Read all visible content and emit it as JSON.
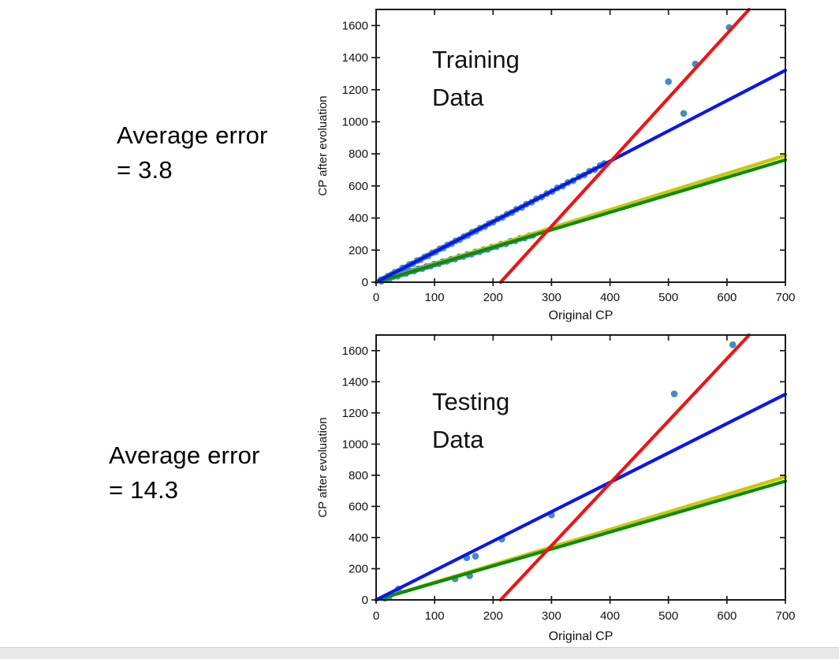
{
  "colors": {
    "scatter": "#2478b4",
    "blue_line": "#0a16ee",
    "green_line": "#0d8a0d",
    "yellow_line": "#c9c900",
    "red_line": "#ee1414",
    "axis": "#1a1a1a",
    "text": "#000000",
    "footer_bar": "#e8e8e8"
  },
  "left_annotations": [
    {
      "id": "training_error",
      "lines": [
        "Average error",
        "= 3.8"
      ]
    },
    {
      "id": "testing_error",
      "lines": [
        "Average error",
        "= 14.3"
      ]
    }
  ],
  "chart_data": [
    {
      "type": "scatter",
      "title_lines": [
        "Training",
        "Data"
      ],
      "xlabel": "Original CP",
      "ylabel": "CP after evoluation",
      "xlim": [
        0,
        700
      ],
      "ylim": [
        0,
        1700
      ],
      "xticks": [
        0,
        100,
        200,
        300,
        400,
        500,
        600,
        700
      ],
      "yticks": [
        0,
        200,
        400,
        600,
        800,
        1000,
        1200,
        1400,
        1600
      ],
      "grid": false,
      "legend": null,
      "lines": [
        {
          "name": "yellow-reference-line",
          "color_key": "yellow_line",
          "from": [
            0,
            0
          ],
          "to": [
            700,
            790
          ],
          "width": 4.5
        },
        {
          "name": "green-fit-line",
          "color_key": "green_line",
          "from": [
            0,
            0
          ],
          "to": [
            700,
            762
          ],
          "width": 4.2
        },
        {
          "name": "blue-fit-line",
          "color_key": "blue_line",
          "from": [
            0,
            0
          ],
          "to": [
            700,
            1320
          ],
          "width": 4.2
        },
        {
          "name": "red-steep-line",
          "color_key": "red_line",
          "from": [
            213,
            0
          ],
          "to": [
            638,
            1700
          ],
          "width": 4.2
        }
      ],
      "scatter_points": [
        [
          8,
          15
        ],
        [
          14,
          22
        ],
        [
          20,
          38
        ],
        [
          26,
          46
        ],
        [
          32,
          62
        ],
        [
          38,
          68
        ],
        [
          45,
          88
        ],
        [
          51,
          92
        ],
        [
          57,
          110
        ],
        [
          63,
          116
        ],
        [
          70,
          134
        ],
        [
          76,
          140
        ],
        [
          83,
          158
        ],
        [
          89,
          164
        ],
        [
          96,
          183
        ],
        [
          102,
          189
        ],
        [
          109,
          208
        ],
        [
          115,
          214
        ],
        [
          122,
          232
        ],
        [
          129,
          240
        ],
        [
          136,
          258
        ],
        [
          143,
          266
        ],
        [
          150,
          284
        ],
        [
          157,
          292
        ],
        [
          164,
          311
        ],
        [
          171,
          319
        ],
        [
          178,
          337
        ],
        [
          186,
          347
        ],
        [
          193,
          366
        ],
        [
          200,
          374
        ],
        [
          208,
          394
        ],
        [
          216,
          404
        ],
        [
          224,
          424
        ],
        [
          232,
          434
        ],
        [
          240,
          455
        ],
        [
          249,
          466
        ],
        [
          257,
          487
        ],
        [
          266,
          498
        ],
        [
          274,
          520
        ],
        [
          283,
          531
        ],
        [
          292,
          553
        ],
        [
          301,
          565
        ],
        [
          310,
          588
        ],
        [
          319,
          599
        ],
        [
          328,
          622
        ],
        [
          337,
          633
        ],
        [
          347,
          658
        ],
        [
          356,
          668
        ],
        [
          365,
          693
        ],
        [
          374,
          702
        ],
        [
          383,
          727
        ],
        [
          390,
          740
        ],
        [
          9,
          6
        ],
        [
          16,
          20
        ],
        [
          23,
          22
        ],
        [
          30,
          36
        ],
        [
          37,
          38
        ],
        [
          44,
          52
        ],
        [
          51,
          54
        ],
        [
          58,
          68
        ],
        [
          65,
          70
        ],
        [
          72,
          83
        ],
        [
          79,
          85
        ],
        [
          86,
          98
        ],
        [
          93,
          100
        ],
        [
          100,
          113
        ],
        [
          107,
          115
        ],
        [
          114,
          128
        ],
        [
          121,
          130
        ],
        [
          128,
          143
        ],
        [
          135,
          145
        ],
        [
          142,
          158
        ],
        [
          149,
          160
        ],
        [
          156,
          173
        ],
        [
          163,
          175
        ],
        [
          170,
          188
        ],
        [
          177,
          190
        ],
        [
          184,
          203
        ],
        [
          191,
          205
        ],
        [
          198,
          218
        ],
        [
          206,
          222
        ],
        [
          214,
          237
        ],
        [
          222,
          240
        ],
        [
          230,
          255
        ],
        [
          238,
          258
        ],
        [
          246,
          272
        ],
        [
          254,
          275
        ],
        [
          262,
          290
        ],
        [
          268,
          293
        ],
        [
          500,
          1250
        ],
        [
          526,
          1052
        ],
        [
          546,
          1360
        ],
        [
          604,
          1588
        ]
      ]
    },
    {
      "type": "scatter",
      "title_lines": [
        "Testing",
        "Data"
      ],
      "xlabel": "Original CP",
      "ylabel": "CP after evoluation",
      "xlim": [
        0,
        700
      ],
      "ylim": [
        0,
        1700
      ],
      "xticks": [
        0,
        100,
        200,
        300,
        400,
        500,
        600,
        700
      ],
      "yticks": [
        0,
        200,
        400,
        600,
        800,
        1000,
        1200,
        1400,
        1600
      ],
      "grid": false,
      "legend": null,
      "lines": [
        {
          "name": "yellow-reference-line",
          "color_key": "yellow_line",
          "from": [
            0,
            0
          ],
          "to": [
            700,
            790
          ],
          "width": 4.5
        },
        {
          "name": "green-fit-line",
          "color_key": "green_line",
          "from": [
            0,
            0
          ],
          "to": [
            700,
            762
          ],
          "width": 4.2
        },
        {
          "name": "blue-fit-line",
          "color_key": "blue_line",
          "from": [
            0,
            0
          ],
          "to": [
            700,
            1320
          ],
          "width": 4.2
        },
        {
          "name": "red-steep-line",
          "color_key": "red_line",
          "from": [
            213,
            0
          ],
          "to": [
            638,
            1700
          ],
          "width": 4.2
        }
      ],
      "scatter_points": [
        [
          15,
          10
        ],
        [
          22,
          18
        ],
        [
          38,
          70
        ],
        [
          135,
          135
        ],
        [
          160,
          155
        ],
        [
          155,
          270
        ],
        [
          170,
          280
        ],
        [
          215,
          390
        ],
        [
          300,
          545
        ],
        [
          510,
          1322
        ],
        [
          610,
          1638
        ]
      ]
    }
  ]
}
